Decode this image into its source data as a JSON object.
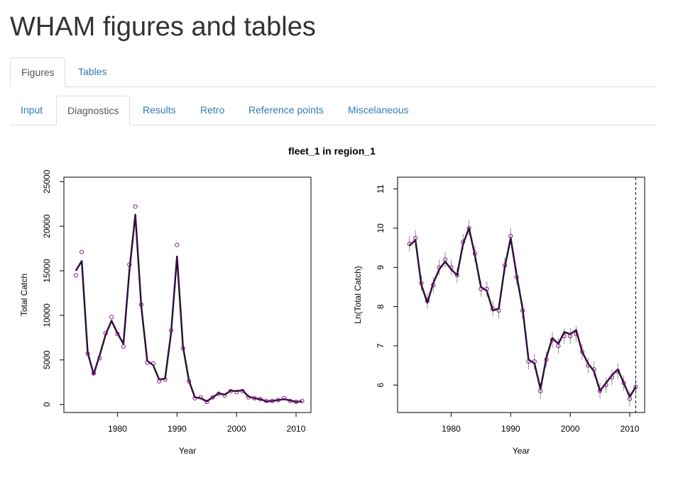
{
  "page": {
    "title": "WHAM figures and tables"
  },
  "top_tabs": [
    {
      "label": "Figures",
      "active": true
    },
    {
      "label": "Tables",
      "active": false
    }
  ],
  "sub_tabs": [
    {
      "label": "Input",
      "active": false
    },
    {
      "label": "Diagnostics",
      "active": true
    },
    {
      "label": "Results",
      "active": false
    },
    {
      "label": "Retro",
      "active": false
    },
    {
      "label": "Reference points",
      "active": false
    },
    {
      "label": "Miscelaneous",
      "active": false
    }
  ],
  "figure": {
    "title": "fleet_1 in region_1"
  },
  "colors": {
    "observed": "#800080",
    "predicted_line": "#000000",
    "predicted_overlay": "#4b0f5e",
    "link": "#337ab7"
  },
  "chart_data": [
    {
      "type": "line",
      "title": "",
      "xlabel": "Year",
      "ylabel": "Total Catch",
      "xlim": [
        1971,
        2012.5
      ],
      "ylim": [
        -900,
        25500
      ],
      "x_ticks": [
        "1980",
        "1990",
        "2000",
        "2010"
      ],
      "y_ticks": [
        "0",
        "5000",
        "10000",
        "15000",
        "20000",
        "25000"
      ],
      "x": [
        1973,
        1974,
        1975,
        1976,
        1977,
        1978,
        1979,
        1980,
        1981,
        1982,
        1983,
        1984,
        1985,
        1986,
        1987,
        1988,
        1989,
        1990,
        1991,
        1992,
        1993,
        1994,
        1995,
        1996,
        1997,
        1998,
        1999,
        2000,
        2001,
        2002,
        2003,
        2004,
        2005,
        2006,
        2007,
        2008,
        2009,
        2010,
        2011
      ],
      "series": [
        {
          "name": "",
          "role": "observed",
          "marker": "circle",
          "values": [
            14500,
            17100,
            5700,
            3500,
            5200,
            8000,
            9800,
            7900,
            6500,
            15700,
            22200,
            11200,
            4700,
            4600,
            2600,
            2800,
            8300,
            17900,
            6300,
            2600,
            700,
            800,
            300,
            800,
            1200,
            1000,
            1500,
            1400,
            1500,
            800,
            700,
            600,
            400,
            400,
            500,
            700,
            400,
            300,
            400
          ]
        },
        {
          "name": "",
          "role": "predicted",
          "marker": "none",
          "values": [
            15000,
            16100,
            5800,
            3400,
            5500,
            7800,
            9400,
            8000,
            6800,
            15000,
            21300,
            11000,
            4900,
            4400,
            2800,
            2900,
            8000,
            16600,
            6500,
            2700,
            800,
            700,
            350,
            800,
            1250,
            1100,
            1550,
            1500,
            1600,
            900,
            700,
            600,
            350,
            400,
            500,
            600,
            450,
            300,
            350
          ]
        }
      ]
    },
    {
      "type": "line",
      "title": "",
      "xlabel": "Year",
      "ylabel": "Ln(Total Catch)",
      "xlim": [
        1971,
        2012.5
      ],
      "ylim": [
        5.3,
        11.3
      ],
      "x_ticks": [
        "1980",
        "1990",
        "2000",
        "2010"
      ],
      "y_ticks": [
        "6",
        "7",
        "8",
        "9",
        "10",
        "11"
      ],
      "vline_x": 2011,
      "x": [
        1973,
        1974,
        1975,
        1976,
        1977,
        1978,
        1979,
        1980,
        1981,
        1982,
        1983,
        1984,
        1985,
        1986,
        1987,
        1988,
        1989,
        1990,
        1991,
        1992,
        1993,
        1994,
        1995,
        1996,
        1997,
        1998,
        1999,
        2000,
        2001,
        2002,
        2003,
        2004,
        2005,
        2006,
        2007,
        2008,
        2009,
        2010,
        2011
      ],
      "series": [
        {
          "name": "",
          "role": "observed",
          "marker": "circle",
          "error_bar": 0.2,
          "values": [
            9.6,
            9.75,
            8.6,
            8.15,
            8.55,
            9.0,
            9.2,
            9.0,
            8.8,
            9.65,
            10.0,
            9.35,
            8.45,
            8.45,
            7.95,
            7.9,
            9.05,
            9.8,
            8.75,
            7.9,
            6.6,
            6.6,
            5.85,
            6.65,
            7.15,
            7.0,
            7.25,
            7.25,
            7.3,
            6.85,
            6.5,
            6.4,
            5.85,
            6.0,
            6.2,
            6.35,
            6.05,
            5.65,
            5.95
          ]
        },
        {
          "name": "",
          "role": "predicted",
          "marker": "none",
          "values": [
            9.55,
            9.7,
            8.55,
            8.1,
            8.6,
            8.95,
            9.15,
            8.95,
            8.8,
            9.6,
            10.0,
            9.3,
            8.5,
            8.4,
            7.9,
            7.95,
            9.0,
            9.75,
            8.8,
            7.95,
            6.65,
            6.55,
            5.9,
            6.7,
            7.2,
            7.05,
            7.35,
            7.3,
            7.4,
            6.85,
            6.55,
            6.35,
            5.85,
            6.05,
            6.25,
            6.4,
            6.05,
            5.7,
            5.95
          ]
        }
      ]
    }
  ]
}
